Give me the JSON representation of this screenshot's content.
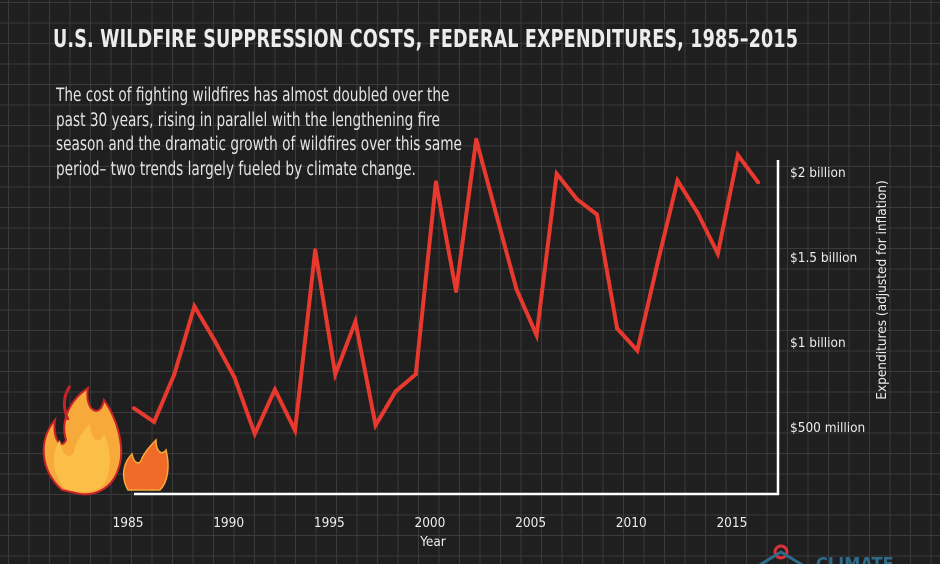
{
  "title": "U.S. WILDFIRE SUPPRESSION COSTS, FEDERAL EXPENDITURES, 1985–2015",
  "subtitle": "The cost of fighting wildfires has almost doubled over the past 30 years, rising in parallel with the lengthening fire season and the dramatic growth of wildfires over this same period– two trends largely fueled by climate change.",
  "logo_text": "CLIMATE",
  "colors": {
    "line": "#e8392f",
    "background": "#1f1f1f",
    "grid": "#3a3a3a",
    "axis": "#ffffff"
  },
  "chart_data": {
    "type": "line",
    "xlabel": "Year",
    "ylabel": "Expenditures (adjusted for inflation)",
    "x_ticks": [
      1985,
      1990,
      1995,
      2000,
      2005,
      2010,
      2015
    ],
    "x_tick_labels": [
      "1985",
      "1990",
      "1995",
      "2000",
      "2005",
      "2010",
      "2015"
    ],
    "y_ticks": [
      0.5,
      1,
      1.5,
      2
    ],
    "y_tick_labels": [
      "$500 million",
      "$1 billion",
      "$1.5 billion",
      "$2 billion"
    ],
    "y_units": "billion USD",
    "xlim": [
      1985,
      2016
    ],
    "grid": true,
    "y_axis_side": "right",
    "x": [
      1985,
      1986,
      1987,
      1988,
      1989,
      1990,
      1991,
      1992,
      1993,
      1994,
      1995,
      1996,
      1997,
      1998,
      1999,
      2000,
      2001,
      2002,
      2003,
      2004,
      2005,
      2006,
      2007,
      2008,
      2009,
      2010,
      2011,
      2012,
      2013,
      2014,
      2015,
      2016
    ],
    "values": [
      0.61,
      0.53,
      0.81,
      1.21,
      1.01,
      0.79,
      0.46,
      0.72,
      0.48,
      1.54,
      0.81,
      1.12,
      0.51,
      0.71,
      0.81,
      1.94,
      1.3,
      2.19,
      1.75,
      1.31,
      1.04,
      1.99,
      1.84,
      1.75,
      1.08,
      0.95,
      1.46,
      1.95,
      1.76,
      1.52,
      2.1,
      1.94
    ]
  }
}
